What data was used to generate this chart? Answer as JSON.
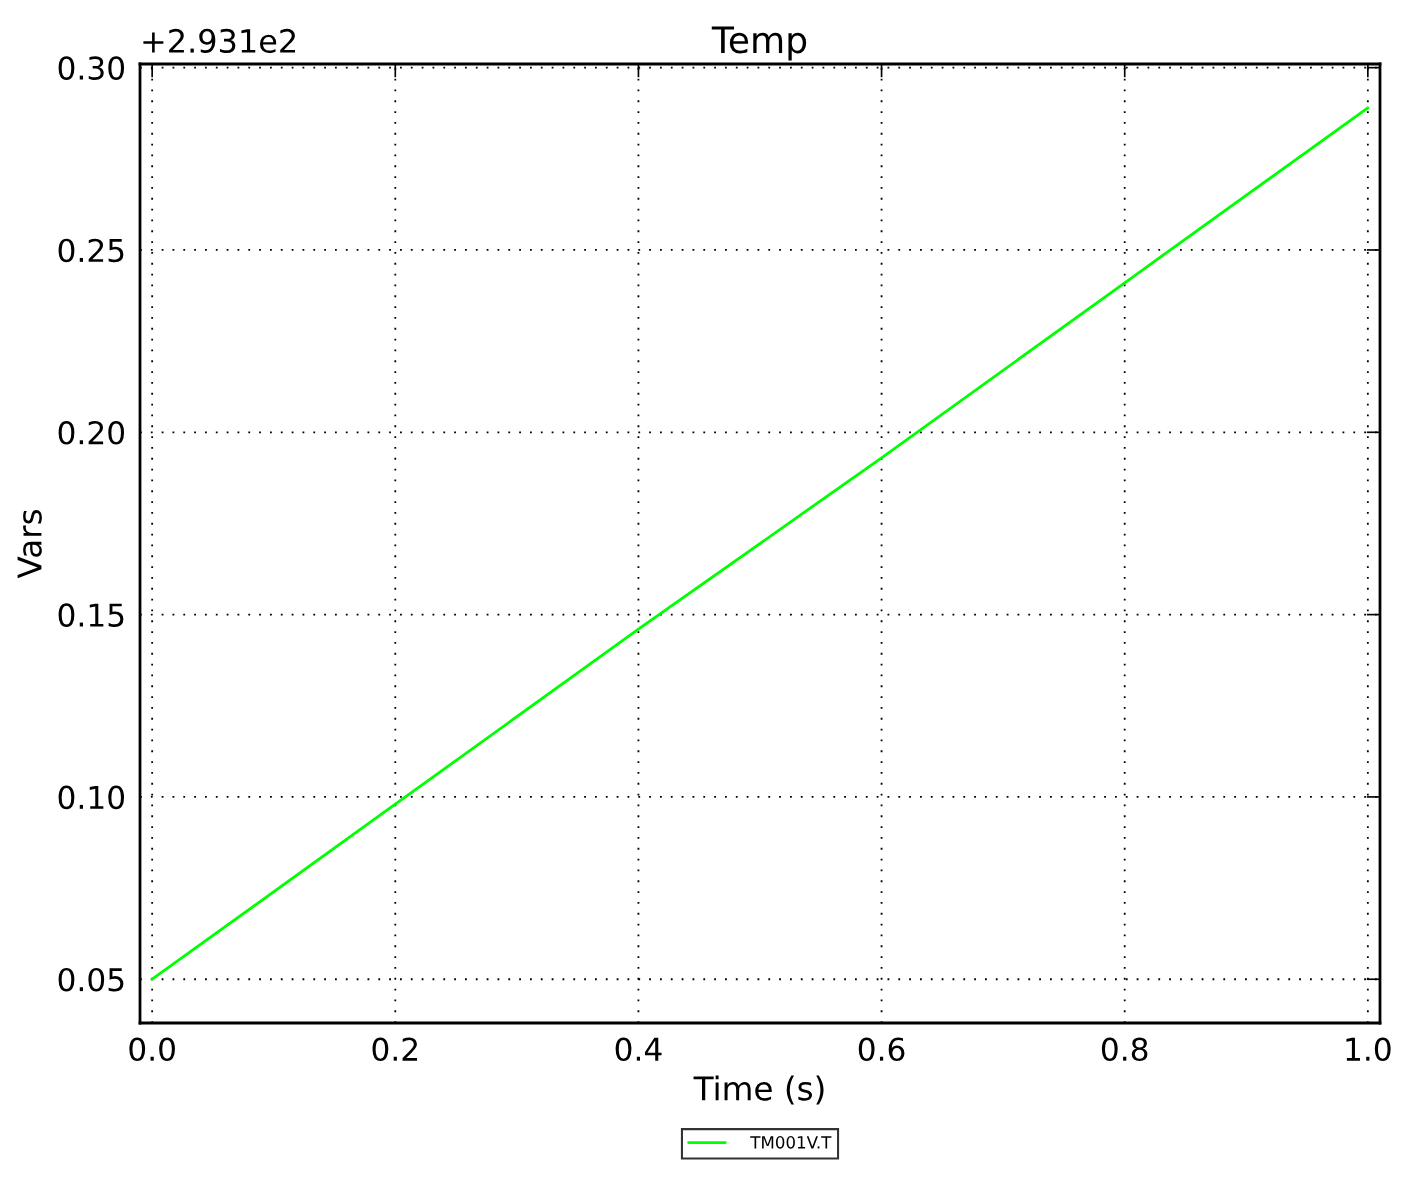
{
  "chart_data": {
    "type": "line",
    "title": "Temp",
    "xlabel": "Time (s)",
    "ylabel": "Vars",
    "x": [
      0.0,
      0.2,
      0.4,
      0.6,
      0.8,
      1.0
    ],
    "series": [
      {
        "name": "TM001V.T",
        "color": "#00ff00",
        "values": [
          0.05,
          0.098,
          0.146,
          0.193,
          0.241,
          0.289
        ]
      }
    ],
    "xlim": [
      -0.01,
      1.01
    ],
    "xticks": [
      {
        "value": 0,
        "label": "0.0"
      },
      {
        "value": 0.2,
        "label": "0.2"
      },
      {
        "value": 0.4,
        "label": "0.4"
      },
      {
        "value": 0.6,
        "label": "0.6"
      },
      {
        "value": 0.8,
        "label": "0.8"
      },
      {
        "value": 1,
        "label": "1.0"
      }
    ],
    "ylim": [
      0.038,
      0.301
    ],
    "yticks": [
      {
        "value": 0.05,
        "label": "0.05"
      },
      {
        "value": 0.1,
        "label": "0.10"
      },
      {
        "value": 0.15,
        "label": "0.15"
      },
      {
        "value": 0.2,
        "label": "0.20"
      },
      {
        "value": 0.25,
        "label": "0.25"
      },
      {
        "value": 0.3,
        "label": "0.30"
      }
    ],
    "annotations": [
      "+2.931e2"
    ],
    "grid": true,
    "legend": "bottom",
    "marker": "none",
    "line_style": "solid"
  }
}
